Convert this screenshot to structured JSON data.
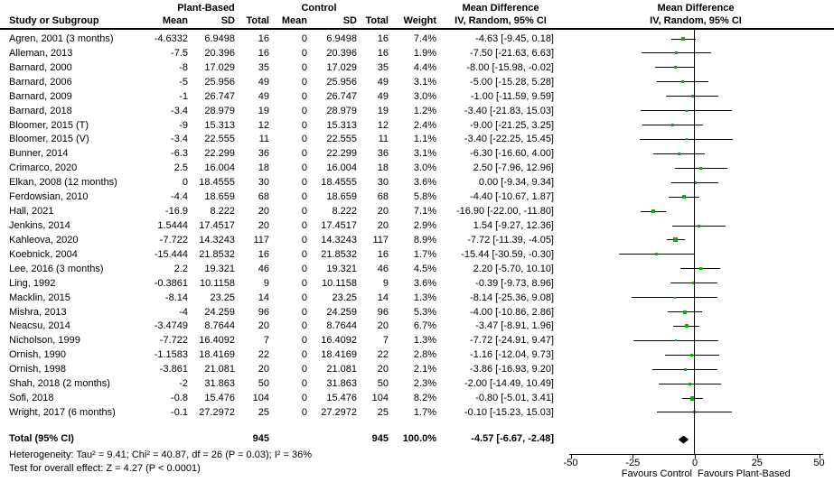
{
  "header": {
    "group1": "Plant-Based",
    "group2": "Control",
    "study": "Study or Subgroup",
    "mean": "Mean",
    "sd": "SD",
    "total": "Total",
    "weight": "Weight",
    "md_title": "Mean Difference",
    "md_subtitle": "IV, Random, 95% CI"
  },
  "chart_data": {
    "type": "scatter",
    "subtype": "forest-plot-meta-analysis",
    "effect_measure": "Mean Difference, IV, Random, 95% CI",
    "x_axis": {
      "min": -50,
      "max": 50,
      "ticks": [
        -50,
        -25,
        0,
        25,
        50
      ],
      "zero_line": 0,
      "left_label": "Favours Control",
      "right_label": "Favours Plant-Based"
    },
    "row_fields": [
      "study",
      "pb_mean",
      "pb_sd",
      "pb_total",
      "c_mean",
      "c_sd",
      "c_total",
      "weight",
      "md_ci_text",
      "md",
      "ci_low",
      "ci_high"
    ],
    "rows": [
      [
        "Agren, 2001 (3 months)",
        "-4.6332",
        "6.9498",
        "16",
        "0",
        "6.9498",
        "16",
        "7.4%",
        "-4.63 [-9.45, 0.18]",
        -4.63,
        -9.45,
        0.18
      ],
      [
        "Alleman, 2013",
        "-7.5",
        "20.396",
        "16",
        "0",
        "20.396",
        "16",
        "1.9%",
        "-7.50 [-21.63, 6.63]",
        -7.5,
        -21.63,
        6.63
      ],
      [
        "Barnard, 2000",
        "-8",
        "17.029",
        "35",
        "0",
        "17.029",
        "35",
        "4.4%",
        "-8.00 [-15.98, -0.02]",
        -8,
        -15.98,
        -0.02
      ],
      [
        "Barnard, 2006",
        "-5",
        "25.956",
        "49",
        "0",
        "25.956",
        "49",
        "3.1%",
        "-5.00 [-15.28, 5.28]",
        -5,
        -15.28,
        5.28
      ],
      [
        "Barnard, 2009",
        "-1",
        "26.747",
        "49",
        "0",
        "26.747",
        "49",
        "3.0%",
        "-1.00 [-11.59, 9.59]",
        -1,
        -11.59,
        9.59
      ],
      [
        "Barnard, 2018",
        "-3.4",
        "28.979",
        "19",
        "0",
        "28.979",
        "19",
        "1.2%",
        "-3.40 [-21.83, 15.03]",
        -3.4,
        -21.83,
        15.03
      ],
      [
        "Bloomer, 2015 (T)",
        "-9",
        "15.313",
        "12",
        "0",
        "15.313",
        "12",
        "2.4%",
        "-9.00 [-21.25, 3.25]",
        -9,
        -21.25,
        3.25
      ],
      [
        "Bloomer, 2015 (V)",
        "-3.4",
        "22.555",
        "11",
        "0",
        "22.555",
        "11",
        "1.1%",
        "-3.40 [-22.25, 15.45]",
        -3.4,
        -22.25,
        15.45
      ],
      [
        "Bunner, 2014",
        "-6.3",
        "22.299",
        "36",
        "0",
        "22.299",
        "36",
        "3.1%",
        "-6.30 [-16.60, 4.00]",
        -6.3,
        -16.6,
        4.0
      ],
      [
        "Crimarco, 2020",
        "2.5",
        "16.004",
        "18",
        "0",
        "16.004",
        "18",
        "3.0%",
        "2.50 [-7.96, 12.96]",
        2.5,
        -7.96,
        12.96
      ],
      [
        "Elkan, 2008 (12 months)",
        "0",
        "18.4555",
        "30",
        "0",
        "18.4555",
        "30",
        "3.6%",
        "0.00 [-9.34, 9.34]",
        0,
        -9.34,
        9.34
      ],
      [
        "Ferdowsian, 2010",
        "-4.4",
        "18.659",
        "68",
        "0",
        "18.659",
        "68",
        "5.8%",
        "-4.40 [-10.67, 1.87]",
        -4.4,
        -10.67,
        1.87
      ],
      [
        "Hall, 2021",
        "-16.9",
        "8.222",
        "20",
        "0",
        "8.222",
        "20",
        "7.1%",
        "-16.90 [-22.00, -11.80]",
        -16.9,
        -22.0,
        -11.8
      ],
      [
        "Jenkins, 2014",
        "1.5444",
        "17.4517",
        "20",
        "0",
        "17.4517",
        "20",
        "2.9%",
        "1.54 [-9.27, 12.36]",
        1.54,
        -9.27,
        12.36
      ],
      [
        "Kahleova, 2020",
        "-7.722",
        "14.3243",
        "117",
        "0",
        "14.3243",
        "117",
        "8.9%",
        "-7.72 [-11.39, -4.05]",
        -7.72,
        -11.39,
        -4.05
      ],
      [
        "Koebnick, 2004",
        "-15.444",
        "21.8532",
        "16",
        "0",
        "21.8532",
        "16",
        "1.7%",
        "-15.44 [-30.59, -0.30]",
        -15.44,
        -30.59,
        -0.3
      ],
      [
        "Lee, 2016 (3 months)",
        "2.2",
        "19.321",
        "46",
        "0",
        "19.321",
        "46",
        "4.5%",
        "2.20 [-5.70, 10.10]",
        2.2,
        -5.7,
        10.1
      ],
      [
        "Ling, 1992",
        "-0.3861",
        "10.1158",
        "9",
        "0",
        "10.1158",
        "9",
        "3.6%",
        "-0.39 [-9.73, 8.96]",
        -0.39,
        -9.73,
        8.96
      ],
      [
        "Macklin, 2015",
        "-8.14",
        "23.25",
        "14",
        "0",
        "23.25",
        "14",
        "1.3%",
        "-8.14 [-25.36, 9.08]",
        -8.14,
        -25.36,
        9.08
      ],
      [
        "Mishra, 2013",
        "-4",
        "24.259",
        "96",
        "0",
        "24.259",
        "96",
        "5.3%",
        "-4.00 [-10.86, 2.86]",
        -4,
        -10.86,
        2.86
      ],
      [
        "Neacsu, 2014",
        "-3.4749",
        "8.7644",
        "20",
        "0",
        "8.7644",
        "20",
        "6.7%",
        "-3.47 [-8.91, 1.96]",
        -3.47,
        -8.91,
        1.96
      ],
      [
        "Nicholson, 1999",
        "-7.722",
        "16.4092",
        "7",
        "0",
        "16.4092",
        "7",
        "1.3%",
        "-7.72 [-24.91, 9.47]",
        -7.72,
        -24.91,
        9.47
      ],
      [
        "Ornish, 1990",
        "-1.1583",
        "18.4169",
        "22",
        "0",
        "18.4169",
        "22",
        "2.8%",
        "-1.16 [-12.04, 9.73]",
        -1.16,
        -12.04,
        9.73
      ],
      [
        "Ornish, 1998",
        "-3.861",
        "21.081",
        "20",
        "0",
        "21.081",
        "20",
        "2.1%",
        "-3.86 [-16.93, 9.20]",
        -3.86,
        -16.93,
        9.2
      ],
      [
        "Shah, 2018 (2 months)",
        "-2",
        "31.863",
        "50",
        "0",
        "31.863",
        "50",
        "2.3%",
        "-2.00 [-14.49, 10.49]",
        -2,
        -14.49,
        10.49
      ],
      [
        "Sofi, 2018",
        "-0.8",
        "15.476",
        "104",
        "0",
        "15.476",
        "104",
        "8.2%",
        "-0.80 [-5.01, 3.41]",
        -0.8,
        -5.01,
        3.41
      ],
      [
        "Wright, 2017 (6 months)",
        "-0.1",
        "27.2972",
        "25",
        "0",
        "27.2972",
        "25",
        "1.7%",
        "-0.10 [-15.23, 15.03]",
        -0.1,
        -15.23,
        15.03
      ]
    ],
    "pooled": {
      "label": "Total (95% CI)",
      "n1": "945",
      "n2": "945",
      "weight": "100.0%",
      "ci_text": "-4.57 [-6.67, -2.48]",
      "md": -4.57,
      "lo": -6.67,
      "hi": -2.48
    }
  },
  "footnotes": {
    "heterogeneity": "Heterogeneity: Tau² = 9.41; Chi² = 40.87, df = 26 (P = 0.03); I² = 36%",
    "overall_effect": "Test for overall effect: Z = 4.27 (P < 0.0001)"
  },
  "colors": {
    "marker_green": "#00b300",
    "diamond": "#000000",
    "line": "#000000"
  }
}
